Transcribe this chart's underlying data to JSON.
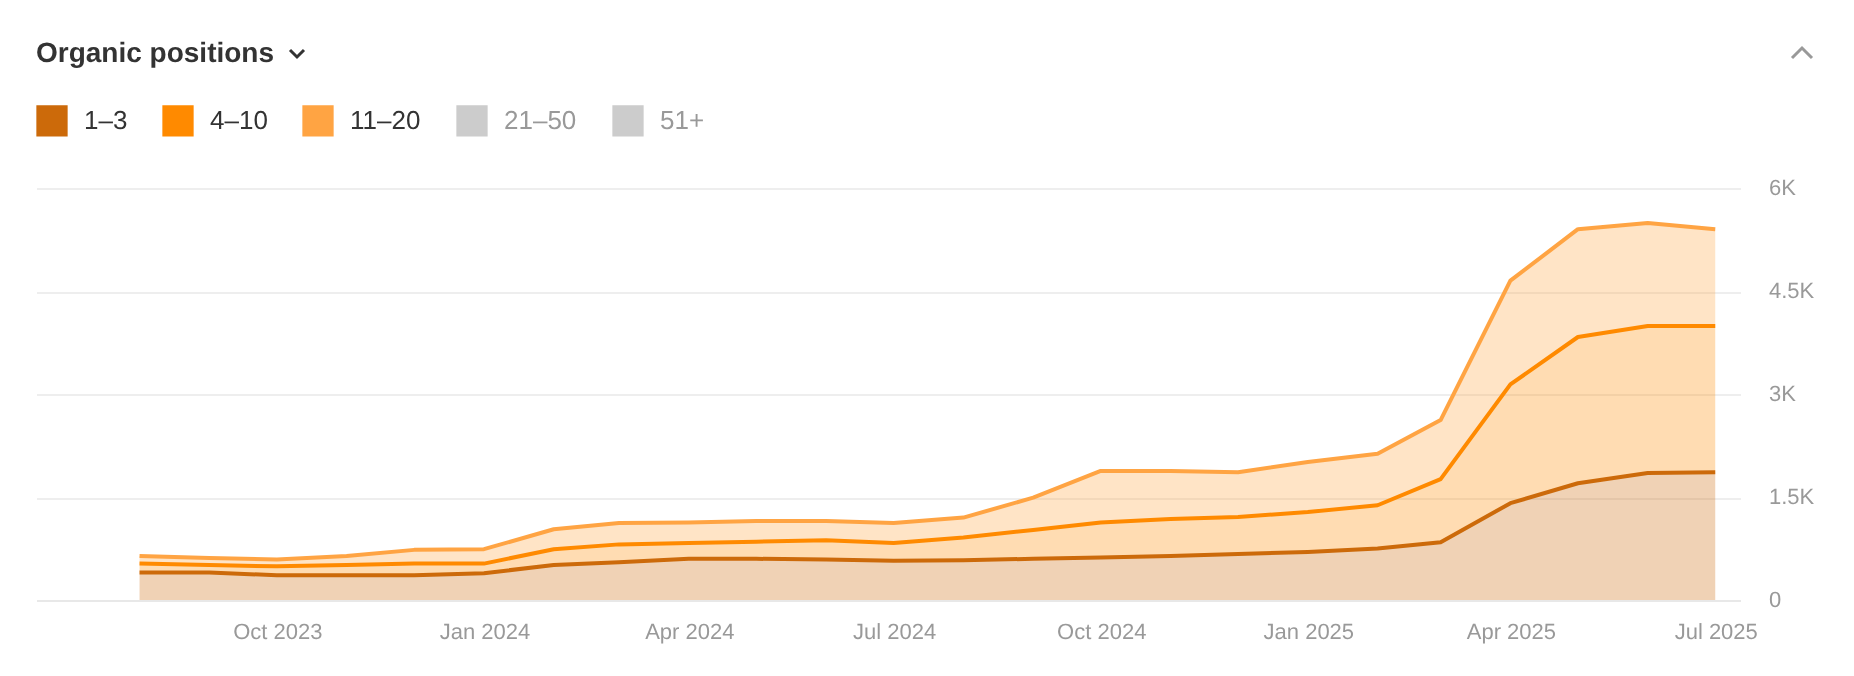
{
  "chart_data": {
    "type": "area",
    "title": "Organic positions",
    "stacked": true,
    "legend": "top left",
    "grid": "y",
    "x": [
      "2023-08",
      "2023-09",
      "2023-10",
      "2023-11",
      "2023-12",
      "2024-01",
      "2024-02",
      "2024-03",
      "2024-04",
      "2024-05",
      "2024-06",
      "2024-07",
      "2024-08",
      "2024-09",
      "2024-10",
      "2024-11",
      "2024-12",
      "2025-01",
      "2025-02",
      "2025-03",
      "2025-04",
      "2025-05",
      "2025-06",
      "2025-07"
    ],
    "xlim": [
      "2023-06-16",
      "2025-07-12"
    ],
    "xticks": [
      {
        "value": "2023-10",
        "label": "Oct 2023"
      },
      {
        "value": "2024-01",
        "label": "Jan 2024"
      },
      {
        "value": "2024-04",
        "label": "Apr 2024"
      },
      {
        "value": "2024-07",
        "label": "Jul 2024"
      },
      {
        "value": "2024-10",
        "label": "Oct 2024"
      },
      {
        "value": "2025-01",
        "label": "Jan 2025"
      },
      {
        "value": "2025-04",
        "label": "Apr 2025"
      },
      {
        "value": "2025-07",
        "label": "Jul 2025"
      }
    ],
    "ylim": [
      0,
      6000
    ],
    "yticks": [
      0,
      {
        "value": 1500,
        "label": "1.5K"
      },
      {
        "value": 3000,
        "label": "3K"
      },
      {
        "value": 4500,
        "label": "4.5K"
      },
      {
        "value": 6000,
        "label": "6K"
      }
    ],
    "series": [
      {
        "name": "1–3",
        "color": "#cc6a0a",
        "values": [
          400,
          400,
          360,
          360,
          360,
          390,
          510,
          550,
          600,
          600,
          590,
          570,
          580,
          600,
          620,
          640,
          670,
          700,
          750,
          840,
          1410,
          1700,
          1850,
          1860
        ]
      },
      {
        "name": "4–10",
        "color": "#ff8a00",
        "values": [
          130,
          110,
          130,
          150,
          170,
          140,
          230,
          260,
          230,
          250,
          280,
          260,
          330,
          420,
          510,
          540,
          540,
          580,
          630,
          920,
          1730,
          2130,
          2140,
          2130
        ]
      },
      {
        "name": "11–20",
        "color": "#ffa443",
        "values": [
          110,
          100,
          100,
          130,
          200,
          210,
          290,
          310,
          300,
          300,
          280,
          290,
          290,
          470,
          750,
          700,
          650,
          730,
          750,
          860,
          1510,
          1570,
          1500,
          1410
        ]
      },
      {
        "name": "21–50",
        "color": "#cccccc",
        "values": [
          null,
          null,
          null,
          null,
          null,
          null,
          null,
          null,
          null,
          null,
          null,
          null,
          null,
          null,
          null,
          null,
          null,
          null,
          null,
          null,
          null,
          null,
          null,
          null
        ]
      },
      {
        "name": "51+",
        "color": "#cccccc",
        "values": [
          null,
          null,
          null,
          null,
          null,
          null,
          null,
          null,
          null,
          null,
          null,
          null,
          null,
          null,
          null,
          null,
          null,
          null,
          null,
          null,
          null,
          null,
          null,
          null
        ]
      }
    ]
  }
}
